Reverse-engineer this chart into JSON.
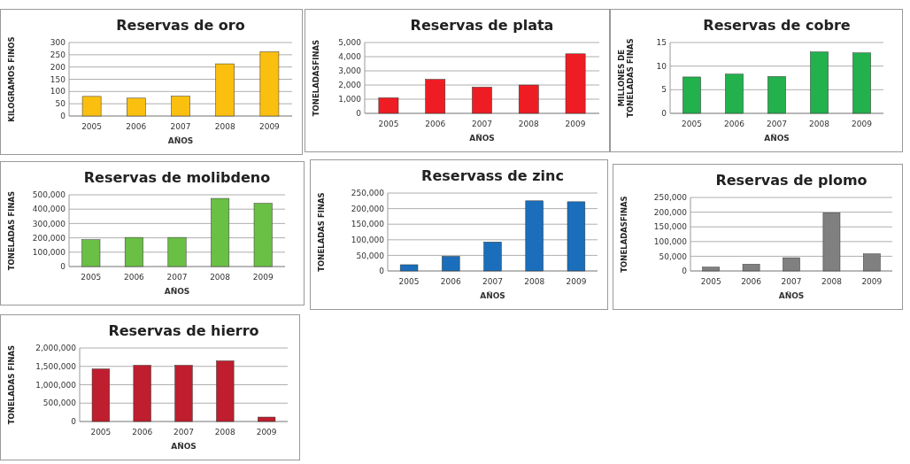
{
  "chart_data": [
    {
      "type": "bar",
      "title": "Reservas de oro",
      "xlabel": "AÑOS",
      "ylabel": "KILOGRAMOS FINOS",
      "categories": [
        "2005",
        "2006",
        "2007",
        "2008",
        "2009"
      ],
      "values": [
        80,
        73,
        81,
        213,
        262
      ],
      "color": "#fbbf10",
      "ylim": [
        0,
        300
      ],
      "yticks": [
        0,
        50,
        100,
        150,
        200,
        250,
        300
      ],
      "grid": "y"
    },
    {
      "type": "bar",
      "title": "Reservas de plata",
      "xlabel": "AÑOS",
      "ylabel": "TONELADASFINAS",
      "categories": [
        "2005",
        "2006",
        "2007",
        "2008",
        "2009"
      ],
      "values": [
        1100,
        2400,
        1850,
        2000,
        4200
      ],
      "color": "#ee1d24",
      "ylim": [
        0,
        5000
      ],
      "yticks": [
        0,
        {
          "value": 1000,
          "label": "1,000"
        },
        {
          "value": 2000,
          "label": "2,000"
        },
        {
          "value": 3000,
          "label": "3,000"
        },
        {
          "value": 4000,
          "label": "4,000"
        },
        {
          "value": 5000,
          "label": "5,000"
        }
      ],
      "grid": "y"
    },
    {
      "type": "bar",
      "title": "Reservas de cobre",
      "xlabel": "AÑOS",
      "ylabel": "MILLONES DE\nTONELADAS FINAS",
      "categories": [
        "2005",
        "2006",
        "2007",
        "2008",
        "2009"
      ],
      "values": [
        7.7,
        8.3,
        7.8,
        13,
        12.8
      ],
      "color": "#22b14c",
      "ylim": [
        0,
        15
      ],
      "yticks": [
        0,
        5,
        10,
        15
      ],
      "grid": "y"
    },
    {
      "type": "bar",
      "title": "Reservas de molibdeno",
      "xlabel": "AÑOS",
      "ylabel": "TONELADAS FINAS",
      "categories": [
        "2005",
        "2006",
        "2007",
        "2008",
        "2009"
      ],
      "values": [
        187000,
        203000,
        203000,
        475000,
        440000
      ],
      "color": "#6abf45",
      "ylim": [
        0,
        500000
      ],
      "yticks": [
        0,
        {
          "value": 100000,
          "label": "100,000"
        },
        {
          "value": 200000,
          "label": "200,000"
        },
        {
          "value": 300000,
          "label": "300,000"
        },
        {
          "value": 400000,
          "label": "400,000"
        },
        {
          "value": 500000,
          "label": "500,000"
        }
      ],
      "grid": "y"
    },
    {
      "type": "bar",
      "title": "Reservass de zinc",
      "xlabel": "AÑOS",
      "ylabel": "TONELADAS FINAS",
      "categories": [
        "2005",
        "2006",
        "2007",
        "2008",
        "2009"
      ],
      "values": [
        20000,
        47000,
        93000,
        225000,
        222000
      ],
      "color": "#1a6ebb",
      "ylim": [
        0,
        250000
      ],
      "yticks": [
        0,
        {
          "value": 50000,
          "label": "50,000"
        },
        {
          "value": 100000,
          "label": "100,000"
        },
        {
          "value": 150000,
          "label": "150,000"
        },
        {
          "value": 200000,
          "label": "200,000"
        },
        {
          "value": 250000,
          "label": "250,000"
        }
      ],
      "grid": "y"
    },
    {
      "type": "bar",
      "title": "Reservas de plomo",
      "xlabel": "AÑOS",
      "ylabel": "TONELADASFINAS",
      "categories": [
        "2005",
        "2006",
        "2007",
        "2008",
        "2009"
      ],
      "values": [
        13000,
        23000,
        45000,
        198000,
        58000
      ],
      "color": "#808080",
      "ylim": [
        0,
        250000
      ],
      "yticks": [
        0,
        {
          "value": 50000,
          "label": "50,000"
        },
        {
          "value": 100000,
          "label": "100,000"
        },
        {
          "value": 150000,
          "label": "150,000"
        },
        {
          "value": 200000,
          "label": "200,000"
        },
        {
          "value": 250000,
          "label": "250,000"
        }
      ],
      "grid": "y"
    },
    {
      "type": "bar",
      "title": "Reservas de hierro",
      "xlabel": "AÑOS",
      "ylabel": "TONELADAS FINAS",
      "categories": [
        "2005",
        "2006",
        "2007",
        "2008",
        "2009"
      ],
      "values": [
        1430000,
        1530000,
        1530000,
        1650000,
        120000
      ],
      "color": "#be1e2d",
      "ylim": [
        0,
        2000000
      ],
      "yticks": [
        0,
        {
          "value": 500000,
          "label": "500,000"
        },
        {
          "value": 1000000,
          "label": "1,000,000"
        },
        {
          "value": 1500000,
          "label": "1,500,000"
        },
        {
          "value": 2000000,
          "label": "2,000,000"
        }
      ],
      "grid": "y"
    }
  ]
}
